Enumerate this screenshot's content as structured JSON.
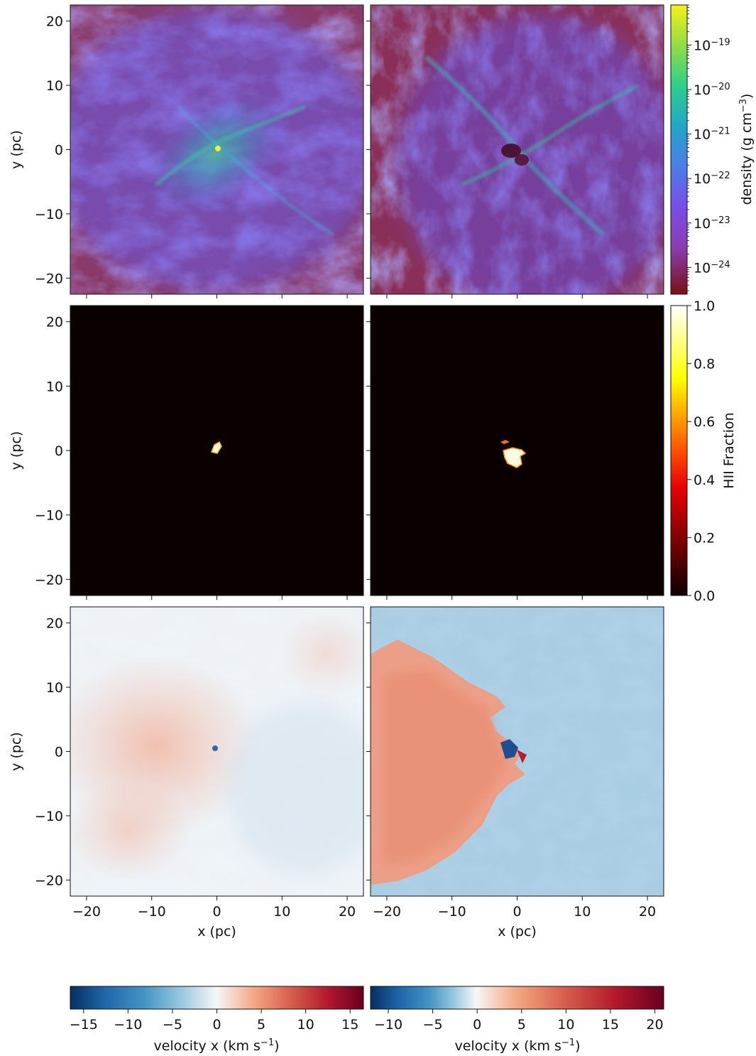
{
  "chart_data": {
    "type": "heatmap",
    "panels": {
      "columns": 2,
      "rows": [
        "density",
        "HII Fraction",
        "velocity x"
      ]
    },
    "xlabel": "x (pc)",
    "ylabel": "y (pc)",
    "xlim": [
      -22.5,
      22.5
    ],
    "ylim": [
      -22.5,
      22.5
    ],
    "x_ticks": [
      "−20",
      "−10",
      "0",
      "10",
      "20"
    ],
    "y_ticks": [
      "20",
      "10",
      "0",
      "−10",
      "−20"
    ],
    "colorbars": [
      {
        "id": "density",
        "label_main": "density (g cm",
        "label_sup": "−3",
        "label_end": ")",
        "scale": "log",
        "range": [
          2.5e-25,
          8e-19
        ],
        "ticks": [
          {
            "base": "10",
            "exp": "−19",
            "value": -19
          },
          {
            "base": "10",
            "exp": "−20",
            "value": -20
          },
          {
            "base": "10",
            "exp": "−21",
            "value": -21
          },
          {
            "base": "10",
            "exp": "−22",
            "value": -22
          },
          {
            "base": "10",
            "exp": "−23",
            "value": -23
          },
          {
            "base": "10",
            "exp": "−24",
            "value": -24
          }
        ],
        "colormap": "turbo-like (dark red → purple → blue → green → yellow)"
      },
      {
        "id": "hii",
        "label": "HII Fraction",
        "range": [
          0.0,
          1.0
        ],
        "ticks": [
          "1.0",
          "0.8",
          "0.6",
          "0.4",
          "0.2",
          "0.0"
        ],
        "tick_values": [
          1.0,
          0.8,
          0.6,
          0.4,
          0.2,
          0.0
        ],
        "colormap": "hot"
      },
      {
        "id": "velocity-left",
        "label_main": "velocity x (km s",
        "label_sup": "−1",
        "label_end": ")",
        "range": [
          -16.5,
          16.5
        ],
        "ticks": [
          "−15",
          "−10",
          "−5",
          "0",
          "5",
          "10",
          "15"
        ],
        "tick_values": [
          -15,
          -10,
          -5,
          0,
          5,
          10,
          15
        ],
        "colormap": "RdBu_r"
      },
      {
        "id": "velocity-right",
        "label_main": "velocity x (km s",
        "label_sup": "−1",
        "label_end": ")",
        "range": [
          -12,
          21
        ],
        "ticks": [
          "−10",
          "−5",
          "0",
          "5",
          "10",
          "15",
          "20"
        ],
        "tick_values": [
          -10,
          -5,
          0,
          5,
          10,
          15,
          20
        ],
        "colormap": "RdBu_r"
      }
    ],
    "features": {
      "hii_left": {
        "x": 0.2,
        "y": 0.4,
        "fraction": 1.0
      },
      "hii_right_main": {
        "x": 0.4,
        "y": -1.0,
        "fraction": 1.0
      },
      "hii_right_small": {
        "x": -2.0,
        "y": 1.5,
        "fraction": 0.6
      }
    }
  },
  "colors": {
    "density_background": "#8a3a5c",
    "density_filaments": "#6a55e0",
    "density_dense": "#33d08a",
    "hii_background": "#0b0000",
    "hii_ionized": "#fff8c0",
    "velocity_zero": "#f2f2f2",
    "velocity_negative": "#9fc9e0",
    "velocity_positive": "#e8957a"
  }
}
